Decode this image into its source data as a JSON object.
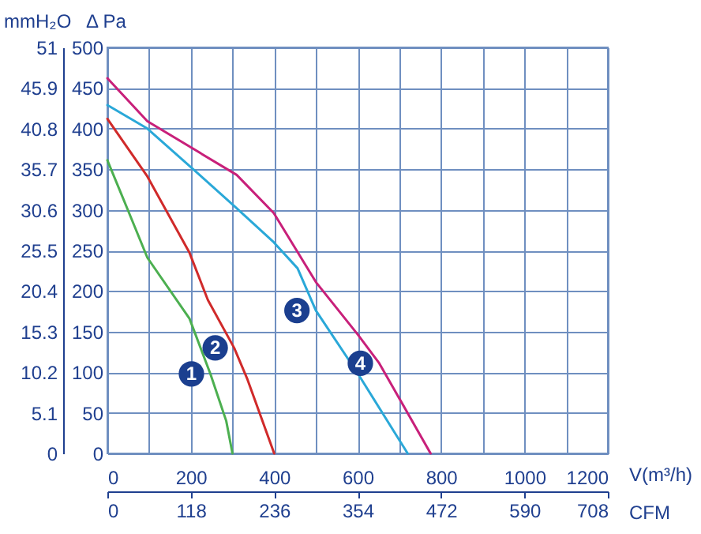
{
  "chart_data": {
    "type": "line",
    "xlabel": "V(m³/h)",
    "ylabel": "Δ Pa",
    "y2label": "mmH₂O",
    "x2label": "CFM",
    "xlim": [
      0,
      1200
    ],
    "xticks": [
      0,
      {
        "value": 100,
        "label": null
      },
      200,
      {
        "value": 300,
        "label": null
      },
      400,
      {
        "value": 500,
        "label": null
      },
      600,
      {
        "value": 700,
        "label": null
      },
      800,
      {
        "value": 900,
        "label": null
      },
      1000,
      {
        "value": 1100,
        "label": null
      },
      1200
    ],
    "ylim": [
      0,
      500
    ],
    "yticks": [
      0,
      50,
      100,
      150,
      200,
      250,
      300,
      350,
      400,
      450,
      500
    ],
    "y2lim": [
      0,
      51
    ],
    "y2ticks": [
      0,
      5.1,
      10.2,
      15.3,
      20.4,
      25.5,
      30.6,
      35.7,
      40.8,
      45.9,
      51
    ],
    "x2lim": [
      0,
      708
    ],
    "x2ticks": [
      0,
      118,
      236,
      354,
      472,
      590,
      708
    ],
    "grid": true,
    "line_style": "solid",
    "series": [
      {
        "name": "1",
        "color": "#4caf50",
        "x": [
          0,
          45,
          96,
          197,
          247,
          285,
          300
        ],
        "values": [
          361,
          305,
          241,
          166,
          98,
          40,
          0
        ]
      },
      {
        "name": "2",
        "color": "#d02a2a",
        "x": [
          0,
          96,
          197,
          241,
          304,
          336,
          400
        ],
        "values": [
          412,
          341,
          247,
          189,
          130,
          91,
          0
        ]
      },
      {
        "name": "3",
        "color": "#2aa8d8",
        "x": [
          0,
          96,
          197,
          310,
          399,
          456,
          500,
          601,
          720
        ],
        "values": [
          429,
          400,
          354,
          302,
          260,
          228,
          176,
          98,
          0
        ]
      },
      {
        "name": "4",
        "color": "#c8207a",
        "x": [
          0,
          96,
          310,
          399,
          500,
          601,
          652,
          702,
          775
        ],
        "values": [
          462,
          409,
          343,
          296,
          211,
          146,
          111,
          66,
          0
        ]
      }
    ]
  }
}
